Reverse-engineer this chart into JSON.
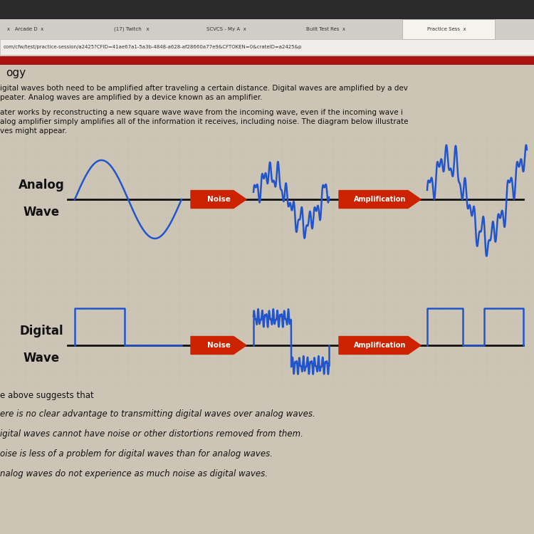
{
  "background_color": "#ccc5b5",
  "wave_color": "#2255cc",
  "arrow_color": "#cc2200",
  "arrow_text_color": "#ffffff",
  "line_color": "#111111",
  "noise_label": "Noise",
  "amplification_label": "Amplification",
  "analog_label": [
    "Analog",
    "Wave"
  ],
  "digital_label": [
    "Digital",
    "Wave"
  ],
  "browser_tab_color": "#e0ddd8",
  "browser_url_color": "#f0eeea",
  "red_bar_color": "#aa1111",
  "figsize": [
    7.5,
    7.5
  ],
  "dpi": 100
}
